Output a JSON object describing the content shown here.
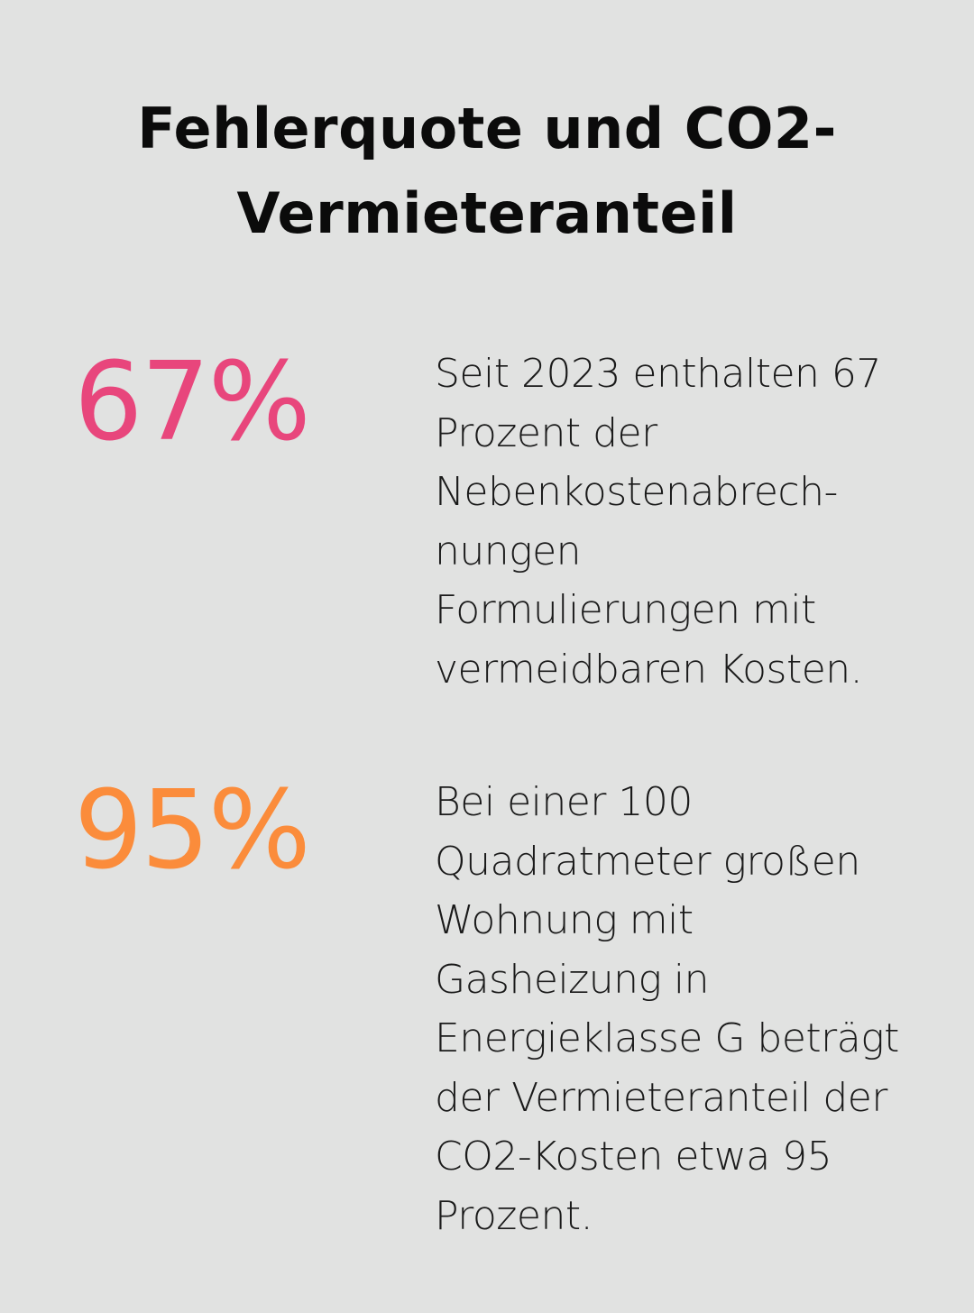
{
  "title_lines": [
    "Fehlerquote und CO2-",
    "Vermieteranteil"
  ],
  "stats": [
    {
      "value": "67%",
      "color": "#e8467c",
      "text_lines": [
        "Seit 2023 enthalten 67",
        "Prozent der",
        "Nebenkostenabrech-",
        "nungen",
        "Formulierungen mit",
        "vermeidbaren Kosten."
      ]
    },
    {
      "value": "95%",
      "color": "#fb8c3b",
      "text_lines": [
        "Bei einer 100",
        "Quadratmeter großen",
        "Wohnung mit",
        "Gasheizung in",
        "Energieklasse G beträgt",
        "der Vermieteranteil der",
        "CO2-Kosten etwa 95",
        "Prozent."
      ]
    }
  ]
}
